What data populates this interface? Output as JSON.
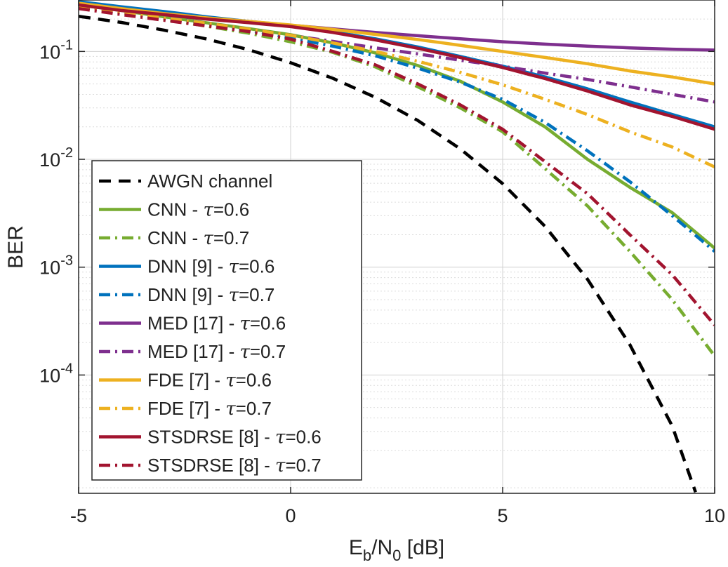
{
  "chart_data": {
    "type": "line",
    "title": "",
    "xlabel": "E_b/N_0 [dB]",
    "xlabel_parts": {
      "main": "E",
      "sub1": "b",
      "slash": "/N",
      "sub2": "0",
      "unit": " [dB]"
    },
    "ylabel": "BER",
    "xlim": [
      -5,
      10
    ],
    "ylim": [
      8e-06,
      0.3
    ],
    "yscale": "log",
    "grid": true,
    "x_ticks": [
      -5,
      0,
      5,
      10
    ],
    "x_tick_labels": [
      "-5",
      "0",
      "5",
      "10"
    ],
    "y_ticks": [
      {
        "value": 0.1,
        "base": "10",
        "exp": "-1"
      },
      {
        "value": 0.01,
        "base": "10",
        "exp": "-2"
      },
      {
        "value": 0.001,
        "base": "10",
        "exp": "-3"
      },
      {
        "value": 0.0001,
        "base": "10",
        "exp": "-4"
      }
    ],
    "legend_position": "bottom-left",
    "x": [
      -5,
      -4,
      -3,
      -2,
      -1,
      0,
      1,
      2,
      3,
      4,
      5,
      6,
      7,
      8,
      9,
      10
    ],
    "series": [
      {
        "name": "AWGN channel",
        "label_main": "AWGN channel",
        "tau": "",
        "color": "#000000",
        "style": "dashed",
        "x": [
          -5,
          -4,
          -3,
          -2,
          -1,
          0,
          1,
          2,
          3,
          4,
          5,
          6,
          7,
          8,
          9,
          9.55
        ],
        "values": [
          0.212,
          0.186,
          0.158,
          0.131,
          0.104,
          0.0786,
          0.0563,
          0.0375,
          0.0229,
          0.0125,
          0.00595,
          0.00239,
          0.000773,
          0.000191,
          3.36e-05,
          8.2e-06
        ]
      },
      {
        "name": "CNN - τ=0.6",
        "label_main": "CNN - ",
        "tau": "=0.6",
        "color": "#77AC30",
        "style": "solid",
        "values": [
          0.27,
          0.24,
          0.21,
          0.185,
          0.163,
          0.143,
          0.12,
          0.097,
          0.074,
          0.053,
          0.034,
          0.02,
          0.01,
          0.0055,
          0.0032,
          0.0015
        ]
      },
      {
        "name": "CNN - τ=0.7",
        "label_main": "CNN - ",
        "tau": "=0.7",
        "color": "#77AC30",
        "style": "dashdot",
        "values": [
          0.26,
          0.23,
          0.2,
          0.172,
          0.148,
          0.123,
          0.098,
          0.072,
          0.047,
          0.03,
          0.018,
          0.0082,
          0.0037,
          0.0014,
          0.0005,
          0.00015
        ]
      },
      {
        "name": "DNN [9] - τ=0.6",
        "label_main": "DNN [9] - ",
        "tau": "=0.6",
        "color": "#0072BD",
        "style": "solid",
        "values": [
          0.29,
          0.26,
          0.235,
          0.21,
          0.19,
          0.171,
          0.152,
          0.131,
          0.11,
          0.09,
          0.073,
          0.058,
          0.045,
          0.034,
          0.026,
          0.02
        ]
      },
      {
        "name": "DNN [9] - τ=0.7",
        "label_main": "DNN [9] - ",
        "tau": "=0.7",
        "color": "#0072BD",
        "style": "dashdot",
        "values": [
          0.27,
          0.24,
          0.21,
          0.183,
          0.158,
          0.133,
          0.112,
          0.091,
          0.07,
          0.052,
          0.036,
          0.022,
          0.012,
          0.0062,
          0.003,
          0.0014
        ]
      },
      {
        "name": "MED [17] - τ=0.6",
        "label_main": "MED [17] - ",
        "tau": "=0.6",
        "color": "#7E2F8E",
        "style": "solid",
        "values": [
          0.28,
          0.25,
          0.225,
          0.205,
          0.19,
          0.175,
          0.162,
          0.15,
          0.14,
          0.131,
          0.123,
          0.117,
          0.112,
          0.108,
          0.105,
          0.103
        ]
      },
      {
        "name": "MED [17] - τ=0.7",
        "label_main": "MED [17] - ",
        "tau": "=0.7",
        "color": "#7E2F8E",
        "style": "dashdot",
        "values": [
          0.26,
          0.23,
          0.205,
          0.183,
          0.161,
          0.141,
          0.124,
          0.108,
          0.095,
          0.083,
          0.073,
          0.063,
          0.055,
          0.047,
          0.04,
          0.034
        ]
      },
      {
        "name": "FDE [7] - τ=0.6",
        "label_main": "FDE [7] - ",
        "tau": "=0.6",
        "color": "#EDB120",
        "style": "solid",
        "values": [
          0.28,
          0.25,
          0.225,
          0.205,
          0.19,
          0.176,
          0.16,
          0.144,
          0.129,
          0.114,
          0.1,
          0.088,
          0.077,
          0.066,
          0.058,
          0.05
        ]
      },
      {
        "name": "FDE [7] - τ=0.7",
        "label_main": "FDE [7] - ",
        "tau": "=0.7",
        "color": "#EDB120",
        "style": "dashdot",
        "values": [
          0.26,
          0.23,
          0.205,
          0.183,
          0.161,
          0.141,
          0.12,
          0.1,
          0.081,
          0.064,
          0.049,
          0.036,
          0.026,
          0.018,
          0.013,
          0.0085
        ]
      },
      {
        "name": "STSDRSE [8] - τ=0.6",
        "label_main": "STSDRSE [8] - ",
        "tau": "=0.6",
        "color": "#A2142F",
        "style": "solid",
        "values": [
          0.27,
          0.24,
          0.22,
          0.2,
          0.185,
          0.17,
          0.15,
          0.128,
          0.107,
          0.088,
          0.071,
          0.056,
          0.043,
          0.032,
          0.025,
          0.019
        ]
      },
      {
        "name": "STSDRSE [8] - τ=0.7",
        "label_main": "STSDRSE [8] - ",
        "tau": "=0.7",
        "color": "#A2142F",
        "style": "dashdot",
        "values": [
          0.25,
          0.22,
          0.195,
          0.173,
          0.153,
          0.13,
          0.1,
          0.075,
          0.05,
          0.032,
          0.019,
          0.0095,
          0.0048,
          0.002,
          0.00085,
          0.00029
        ]
      }
    ]
  }
}
